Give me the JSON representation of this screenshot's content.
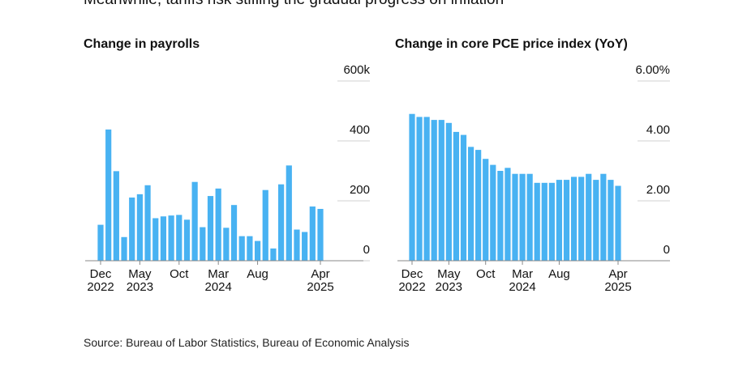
{
  "headline": "Meanwhile, tariffs risk stifling the gradual progress on inflation",
  "source": "Source: Bureau of Labor Statistics, Bureau of Economic Analysis",
  "chart_data": [
    {
      "type": "bar",
      "title": "Change in payrolls",
      "color": "#48b2f2",
      "categories": [
        "Dec\n2022",
        null,
        null,
        null,
        null,
        "May\n2023",
        null,
        null,
        null,
        null,
        "Oct",
        null,
        null,
        null,
        null,
        "Mar\n2024",
        null,
        null,
        null,
        null,
        "Aug",
        null,
        null,
        null,
        null,
        null,
        null,
        null,
        "Apr\n2025"
      ],
      "values": [
        120,
        438,
        299,
        79,
        211,
        222,
        252,
        142,
        148,
        151,
        153,
        137,
        263,
        112,
        216,
        241,
        110,
        186,
        82,
        82,
        66,
        236,
        41,
        255,
        318,
        104,
        96,
        181,
        173
      ],
      "ylim": [
        0,
        600
      ],
      "yticks": [
        0,
        200,
        400,
        {
          "value": 600,
          "label": "600k"
        }
      ]
    },
    {
      "type": "bar",
      "title": "Change in core PCE price index (YoY)",
      "color": "#48b2f2",
      "categories": [
        "Dec\n2022",
        null,
        null,
        null,
        null,
        "May\n2023",
        null,
        null,
        null,
        null,
        "Oct",
        null,
        null,
        null,
        null,
        "Mar\n2024",
        null,
        null,
        null,
        null,
        "Aug",
        null,
        null,
        null,
        null,
        null,
        null,
        null,
        "Apr\n2025"
      ],
      "values": [
        4.9,
        4.8,
        4.8,
        4.7,
        4.7,
        4.6,
        4.3,
        4.2,
        3.8,
        3.7,
        3.4,
        3.2,
        3.0,
        3.1,
        2.9,
        2.9,
        2.9,
        2.6,
        2.6,
        2.6,
        2.7,
        2.7,
        2.8,
        2.8,
        2.9,
        2.7,
        2.9,
        2.7,
        2.5
      ],
      "ylim": [
        0,
        6
      ],
      "yticks": [
        0,
        {
          "value": 2,
          "label": "2.00"
        },
        {
          "value": 4,
          "label": "4.00"
        },
        {
          "value": 6,
          "label": "6.00%"
        }
      ]
    }
  ]
}
